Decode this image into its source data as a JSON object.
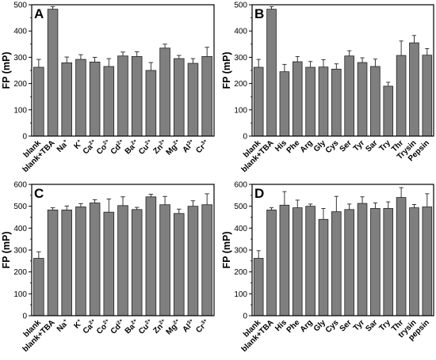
{
  "chart_data": [
    {
      "panel": "A",
      "type": "bar",
      "ylabel": "FP (mP)",
      "ylim": [
        0,
        500
      ],
      "yticks": [
        0,
        100,
        200,
        300,
        400,
        500
      ],
      "categories": [
        "blank",
        "blank+TBA",
        "Na",
        "K",
        "Ca",
        "Co",
        "Cd",
        "Ba",
        "Cu",
        "Zn",
        "Mg",
        "Al",
        "Cr"
      ],
      "superscripts": [
        "",
        "",
        "+",
        "+",
        "2+",
        "2+",
        "2+",
        "2+",
        "2+",
        "2+",
        "2+",
        "3+",
        "3+"
      ],
      "values": [
        262,
        483,
        279,
        292,
        282,
        265,
        305,
        303,
        250,
        335,
        295,
        277,
        303
      ],
      "errors": [
        30,
        10,
        22,
        18,
        18,
        30,
        15,
        18,
        30,
        15,
        12,
        18,
        35
      ],
      "bar_color": "#7f7f7f"
    },
    {
      "panel": "B",
      "type": "bar",
      "ylabel": "FP (mP)",
      "ylim": [
        0,
        500
      ],
      "yticks": [
        0,
        100,
        200,
        300,
        400,
        500
      ],
      "categories": [
        "blank",
        "blank+TBA",
        "His",
        "Phe",
        "Arg",
        "Gly",
        "Cys",
        "Ser",
        "Tyr",
        "Sar",
        "Try",
        "Thr",
        "Trysin",
        "Pepsin"
      ],
      "superscripts": [
        "",
        "",
        "",
        "",
        "",
        "",
        "",
        "",
        "",
        "",
        "",
        "",
        "",
        ""
      ],
      "values": [
        262,
        483,
        245,
        283,
        262,
        263,
        255,
        305,
        280,
        265,
        190,
        307,
        355,
        308
      ],
      "errors": [
        30,
        10,
        28,
        20,
        22,
        28,
        20,
        20,
        18,
        28,
        15,
        55,
        28,
        25
      ],
      "bar_color": "#7f7f7f"
    },
    {
      "panel": "C",
      "type": "bar",
      "ylabel": "FP (mP)",
      "ylim": [
        0,
        600
      ],
      "yticks": [
        0,
        100,
        200,
        300,
        400,
        500,
        600
      ],
      "categories": [
        "blank",
        "blank+TBA",
        "Na",
        "K",
        "Ca",
        "Co",
        "Cd",
        "Ba",
        "Cu",
        "Zn",
        "Mg",
        "Al",
        "Cr"
      ],
      "superscripts": [
        "",
        "",
        "+",
        "+",
        "2+",
        "2+",
        "2+",
        "2+",
        "2+",
        "2+",
        "2+",
        "3+",
        "3+"
      ],
      "values": [
        262,
        483,
        483,
        497,
        515,
        473,
        503,
        485,
        543,
        507,
        467,
        500,
        507
      ],
      "errors": [
        30,
        10,
        18,
        15,
        15,
        60,
        40,
        10,
        12,
        38,
        20,
        25,
        50
      ],
      "bar_color": "#7f7f7f"
    },
    {
      "panel": "D",
      "type": "bar",
      "ylabel": "FP (mP)",
      "ylim": [
        0,
        600
      ],
      "yticks": [
        0,
        100,
        200,
        300,
        400,
        500,
        600
      ],
      "categories": [
        "blank",
        "blank+TBA",
        "His",
        "Phe",
        "Arg",
        "Gly",
        "Cys",
        "Ser",
        "Tyr",
        "Sar",
        "Try",
        "Thr",
        "trysin",
        "pepsin"
      ],
      "superscripts": [
        "",
        "",
        "",
        "",
        "",
        "",
        "",
        "",
        "",
        "",
        "",
        "",
        "",
        ""
      ],
      "values": [
        262,
        483,
        505,
        493,
        500,
        440,
        475,
        485,
        513,
        490,
        490,
        540,
        493,
        497
      ],
      "errors": [
        35,
        10,
        62,
        35,
        10,
        50,
        70,
        25,
        30,
        25,
        30,
        45,
        15,
        60
      ],
      "bar_color": "#7f7f7f"
    }
  ]
}
